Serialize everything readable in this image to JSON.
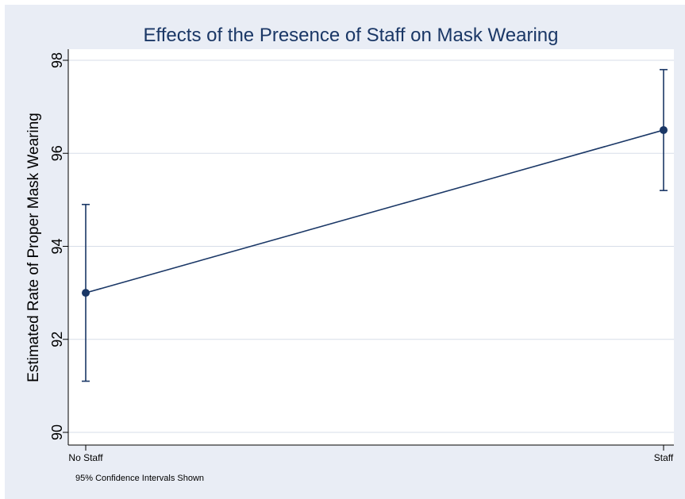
{
  "chart_data": {
    "type": "line",
    "title": "Effects of the Presence of Staff on Mask Wearing",
    "xlabel": "",
    "ylabel": "Estimated Rate of Proper Mask Wearing",
    "note": "95% Confidence Intervals Shown",
    "categories": [
      "No Staff",
      "Staff"
    ],
    "series": [
      {
        "values": [
          93.0,
          96.5
        ],
        "ci_lower": [
          91.1,
          95.2
        ],
        "ci_upper": [
          94.9,
          97.8
        ]
      }
    ],
    "ylim": [
      90,
      98
    ],
    "yticks": [
      90,
      92,
      94,
      96,
      98
    ],
    "grid": true,
    "colors": {
      "series": "#1a3766",
      "background": "#e9edf5",
      "plot": "#ffffff",
      "grid": "#d7dde8"
    }
  }
}
